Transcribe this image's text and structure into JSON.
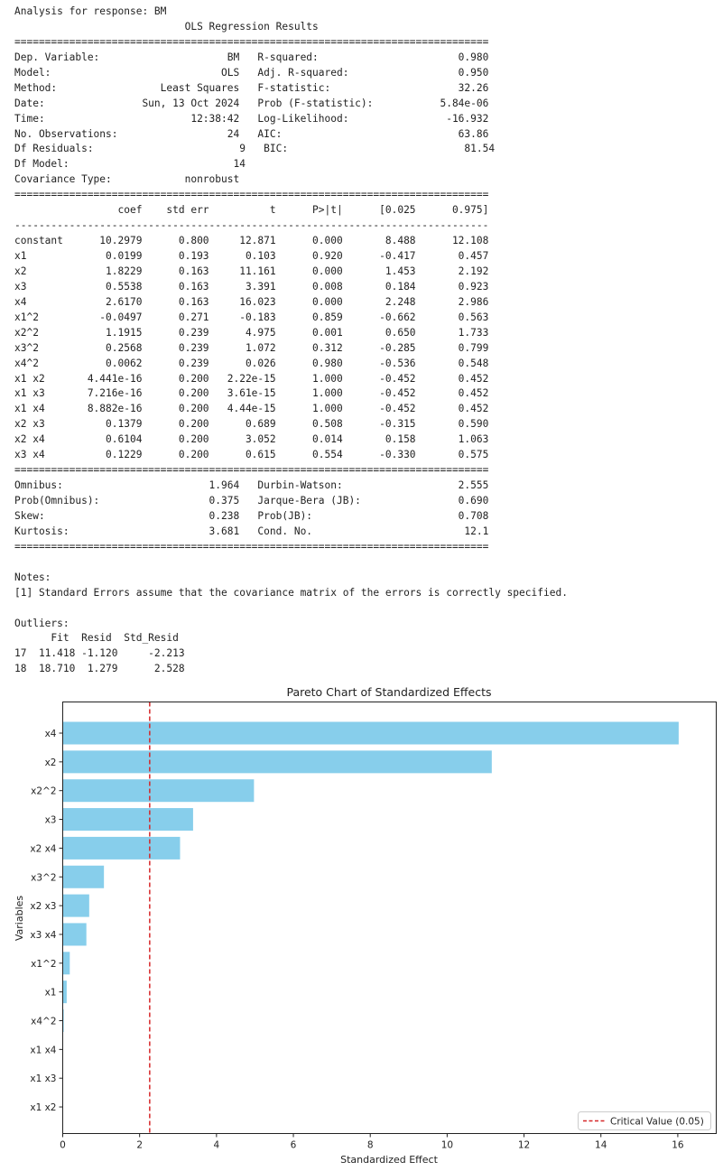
{
  "console": {
    "lines": [
      "Analysis for response: BM",
      "                            OLS Regression Results                            ",
      "==============================================================================",
      "Dep. Variable:                     BM   R-squared:                       0.980",
      "Model:                            OLS   Adj. R-squared:                  0.950",
      "Method:                 Least Squares   F-statistic:                     32.26",
      "Date:                Sun, 13 Oct 2024   Prob (F-statistic):           5.84e-06",
      "Time:                        12:38:42   Log-Likelihood:                -16.932",
      "No. Observations:                  24   AIC:                             63.86",
      "Df Residuals:                        9   BIC:                             81.54",
      "Df Model:                           14                                         ",
      "Covariance Type:            nonrobust                                         ",
      "==============================================================================",
      "                 coef    std err          t      P>|t|      [0.025      0.975]",
      "------------------------------------------------------------------------------",
      "constant      10.2979      0.800     12.871      0.000       8.488      12.108",
      "x1             0.0199      0.193      0.103      0.920      -0.417       0.457",
      "x2             1.8229      0.163     11.161      0.000       1.453       2.192",
      "x3             0.5538      0.163      3.391      0.008       0.184       0.923",
      "x4             2.6170      0.163     16.023      0.000       2.248       2.986",
      "x1^2          -0.0497      0.271     -0.183      0.859      -0.662       0.563",
      "x2^2           1.1915      0.239      4.975      0.001       0.650       1.733",
      "x3^2           0.2568      0.239      1.072      0.312      -0.285       0.799",
      "x4^2           0.0062      0.239      0.026      0.980      -0.536       0.548",
      "x1 x2       4.441e-16      0.200   2.22e-15      1.000      -0.452       0.452",
      "x1 x3       7.216e-16      0.200   3.61e-15      1.000      -0.452       0.452",
      "x1 x4       8.882e-16      0.200   4.44e-15      1.000      -0.452       0.452",
      "x2 x3          0.1379      0.200      0.689      0.508      -0.315       0.590",
      "x2 x4          0.6104      0.200      3.052      0.014       0.158       1.063",
      "x3 x4          0.1229      0.200      0.615      0.554      -0.330       0.575",
      "==============================================================================",
      "Omnibus:                        1.964   Durbin-Watson:                   2.555",
      "Prob(Omnibus):                  0.375   Jarque-Bera (JB):                0.690",
      "Skew:                           0.238   Prob(JB):                        0.708",
      "Kurtosis:                       3.681   Cond. No.                         12.1",
      "==============================================================================",
      "",
      "Notes:",
      "[1] Standard Errors assume that the covariance matrix of the errors is correctly specified.",
      "",
      "Outliers:",
      "      Fit  Resid  Std_Resid",
      "17  11.418 -1.120     -2.213",
      "18  18.710  1.279      2.528"
    ]
  },
  "chart_data": {
    "type": "bar",
    "orientation": "horizontal",
    "title": "Pareto Chart of Standardized Effects",
    "xlabel": "Standardized Effect",
    "ylabel": "Variables",
    "xlim": [
      0,
      17
    ],
    "xticks": [
      0,
      2,
      4,
      6,
      8,
      10,
      12,
      14,
      16
    ],
    "categories": [
      "x4",
      "x2",
      "x2^2",
      "x3",
      "x2 x4",
      "x3^2",
      "x2 x3",
      "x3 x4",
      "x1^2",
      "x1",
      "x4^2",
      "x1 x4",
      "x1 x3",
      "x1 x2"
    ],
    "values": [
      16.023,
      11.161,
      4.975,
      3.391,
      3.052,
      1.072,
      0.689,
      0.615,
      0.183,
      0.103,
      0.026,
      4.44e-15,
      3.61e-15,
      2.22e-15
    ],
    "bar_color": "#87ceeb",
    "critical_value": 2.262,
    "critical_line_color": "#d62728",
    "legend": {
      "label": "Critical Value (0.05)",
      "placement": "lower-right"
    },
    "grid": false
  }
}
